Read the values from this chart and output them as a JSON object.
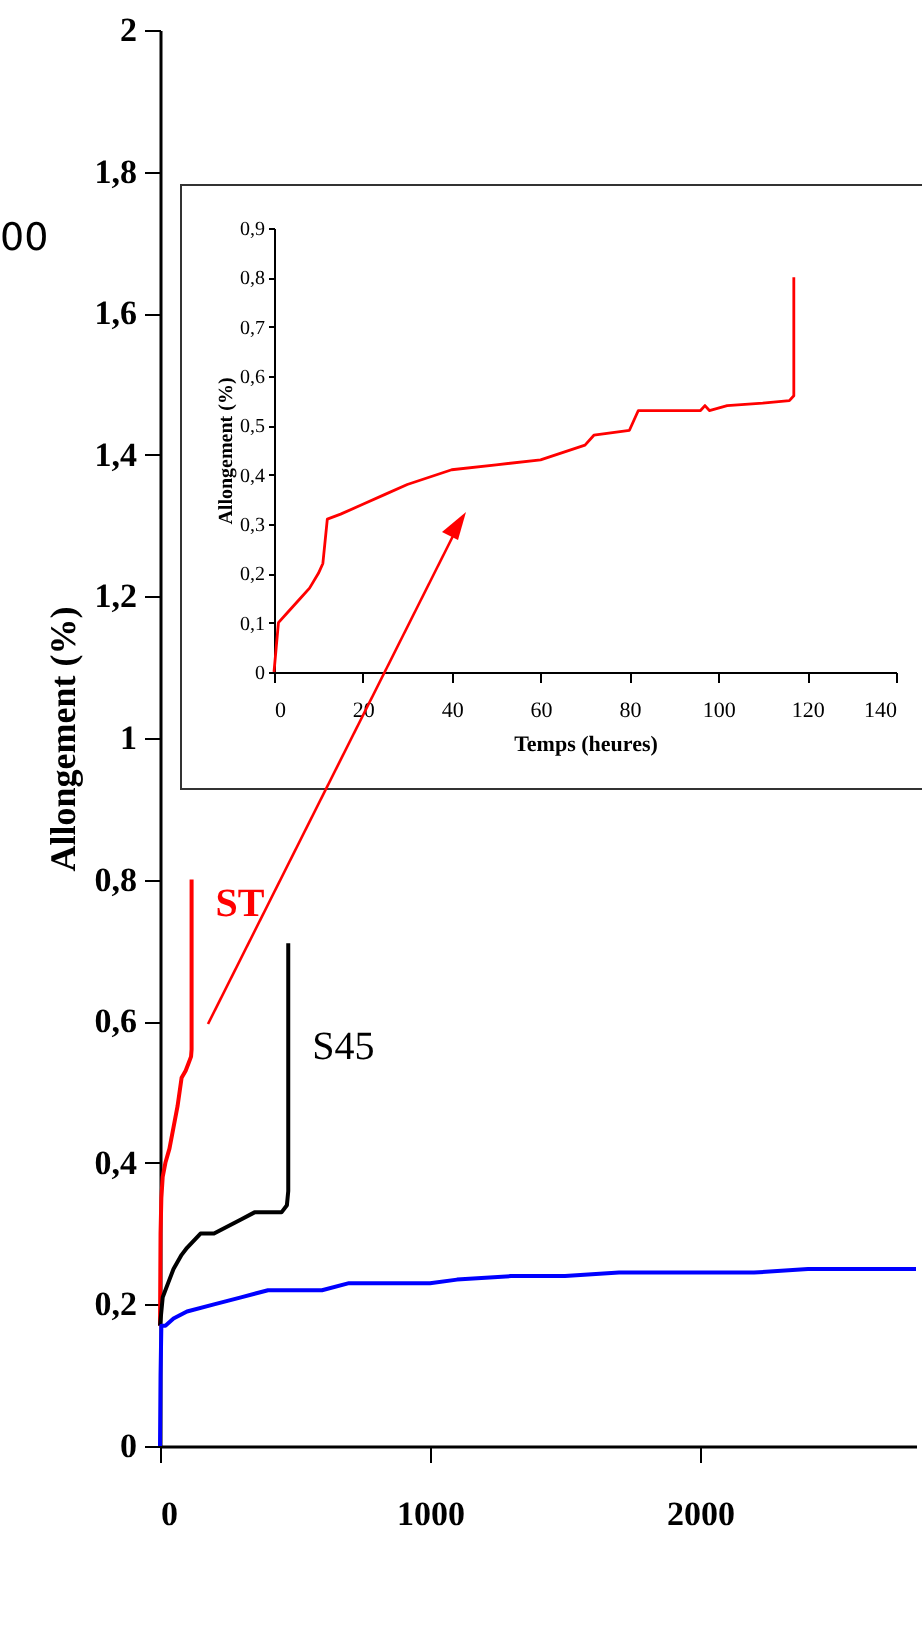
{
  "chart_data": [
    {
      "type": "line",
      "ylabel": "Allongement (%)",
      "annotations": [
        "00"
      ],
      "xlim": [
        0,
        2800
      ],
      "xticks": [
        0,
        1000,
        2000
      ],
      "ylim": [
        0,
        2
      ],
      "yticks": [
        0,
        {
          "value": 0.2,
          "label": "0,2"
        },
        {
          "value": 0.4,
          "label": "0,4"
        },
        {
          "value": 0.6,
          "label": "0,6"
        },
        {
          "value": 0.8,
          "label": "0,8"
        },
        1,
        {
          "value": 1.2,
          "label": "1,2"
        },
        {
          "value": 1.4,
          "label": "1,4"
        },
        {
          "value": 1.6,
          "label": "1,6"
        },
        {
          "value": 1.8,
          "label": "1,8"
        },
        2
      ],
      "grid": false,
      "legend": false,
      "series": [
        {
          "name": "ST",
          "color": "#ff0000",
          "x": [
            0,
            2,
            5,
            10,
            20,
            35,
            50,
            65,
            80,
            95,
            105,
            115,
            117,
            117
          ],
          "values": [
            0.17,
            0.3,
            0.35,
            0.38,
            0.4,
            0.42,
            0.45,
            0.48,
            0.52,
            0.53,
            0.54,
            0.55,
            0.56,
            0.8
          ]
        },
        {
          "name": "S45",
          "color": "#000000",
          "x": [
            0,
            10,
            30,
            50,
            80,
            100,
            150,
            200,
            250,
            300,
            350,
            400,
            450,
            470,
            475,
            475
          ],
          "values": [
            0.17,
            0.21,
            0.23,
            0.25,
            0.27,
            0.28,
            0.3,
            0.3,
            0.31,
            0.32,
            0.33,
            0.33,
            0.33,
            0.34,
            0.36,
            0.71
          ]
        },
        {
          "color": "#0000ff",
          "x": [
            0,
            2,
            5,
            20,
            50,
            100,
            200,
            300,
            400,
            500,
            600,
            700,
            800,
            1000,
            1100,
            1300,
            1500,
            1700,
            2000,
            2200,
            2400,
            2500,
            2600,
            2800
          ],
          "values": [
            0,
            0.1,
            0.17,
            0.17,
            0.18,
            0.19,
            0.2,
            0.21,
            0.22,
            0.22,
            0.22,
            0.23,
            0.23,
            0.23,
            0.235,
            0.24,
            0.24,
            0.245,
            0.245,
            0.245,
            0.25,
            0.25,
            0.25,
            0.25
          ]
        }
      ]
    },
    {
      "type": "line",
      "xlabel": "Temps (heures)",
      "ylabel": "Allongement (%)",
      "xlim": [
        0,
        140
      ],
      "xticks": [
        0,
        20,
        40,
        60,
        80,
        100,
        120,
        140
      ],
      "ylim": [
        0,
        0.9
      ],
      "yticks": [
        0,
        {
          "value": 0.1,
          "label": "0,1"
        },
        {
          "value": 0.2,
          "label": "0,2"
        },
        {
          "value": 0.3,
          "label": "0,3"
        },
        {
          "value": 0.4,
          "label": "0,4"
        },
        {
          "value": 0.5,
          "label": "0,5"
        },
        {
          "value": 0.6,
          "label": "0,6"
        },
        {
          "value": 0.7,
          "label": "0,7"
        },
        {
          "value": 0.8,
          "label": "0,8"
        },
        {
          "value": 0.9,
          "label": "0,9"
        }
      ],
      "grid": false,
      "legend": false,
      "series": [
        {
          "color": "#ff0000",
          "x": [
            0,
            0.5,
            1,
            3,
            6,
            8,
            10,
            11,
            12,
            15,
            20,
            25,
            30,
            40,
            50,
            60,
            70,
            72,
            80,
            82,
            90,
            96,
            97,
            98,
            102,
            110,
            116,
            117,
            117
          ],
          "values": [
            0,
            0.05,
            0.1,
            0.12,
            0.15,
            0.17,
            0.2,
            0.22,
            0.31,
            0.32,
            0.34,
            0.36,
            0.38,
            0.41,
            0.42,
            0.43,
            0.46,
            0.48,
            0.49,
            0.53,
            0.53,
            0.53,
            0.54,
            0.53,
            0.54,
            0.545,
            0.55,
            0.56,
            0.8
          ]
        }
      ]
    }
  ]
}
